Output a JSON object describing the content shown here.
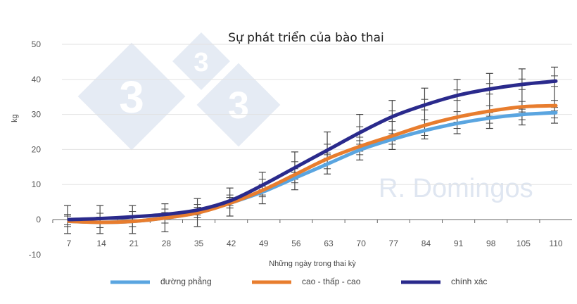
{
  "chart_data": {
    "type": "line",
    "title": "Sự phát triển của bào thai",
    "xlabel": "Những ngày trong thai kỳ",
    "ylabel": "kg",
    "ylim": [
      -10,
      50
    ],
    "yticks": [
      50,
      40,
      30,
      20,
      10,
      0,
      -10
    ],
    "grid": true,
    "legend_position": "bottom",
    "categories": [
      "7",
      "14",
      "21",
      "28",
      "35",
      "42",
      "49",
      "56",
      "63",
      "70",
      "77",
      "84",
      "91",
      "98",
      "105",
      "110"
    ],
    "series": [
      {
        "name": "đường phẳng",
        "color": "#5aa5e0",
        "values": [
          -0.5,
          -0.8,
          -0.5,
          0.5,
          2,
          4.8,
          8,
          12,
          16,
          20,
          23,
          25.5,
          27.5,
          29,
          30,
          30.5
        ]
      },
      {
        "name": "cao - thấp - cao",
        "color": "#e87d2e",
        "values": [
          -0.5,
          -0.8,
          -0.5,
          0.5,
          2,
          4.8,
          8.5,
          13,
          17.5,
          21,
          24,
          27,
          29.3,
          31,
          32.2,
          32.5
        ]
      },
      {
        "name": "chính xác",
        "color": "#2a2a8c",
        "values": [
          0,
          0.3,
          0.8,
          1.5,
          2.8,
          5.5,
          10,
          15,
          20,
          25,
          29.5,
          32.8,
          35.5,
          37.3,
          38.6,
          39.5
        ]
      }
    ],
    "error_bars": {
      "low": [
        -4,
        -4,
        -4,
        -3.5,
        -2,
        1,
        4.5,
        8.5,
        13,
        17,
        20,
        23,
        24.5,
        26,
        27,
        27.5
      ],
      "high": [
        4,
        4,
        4,
        4.5,
        6,
        9,
        13.5,
        19.3,
        25,
        30,
        34,
        37.5,
        40,
        41.7,
        43,
        43.5
      ]
    }
  },
  "watermark": {
    "logo_text": "333",
    "text": "R. Domingos"
  }
}
